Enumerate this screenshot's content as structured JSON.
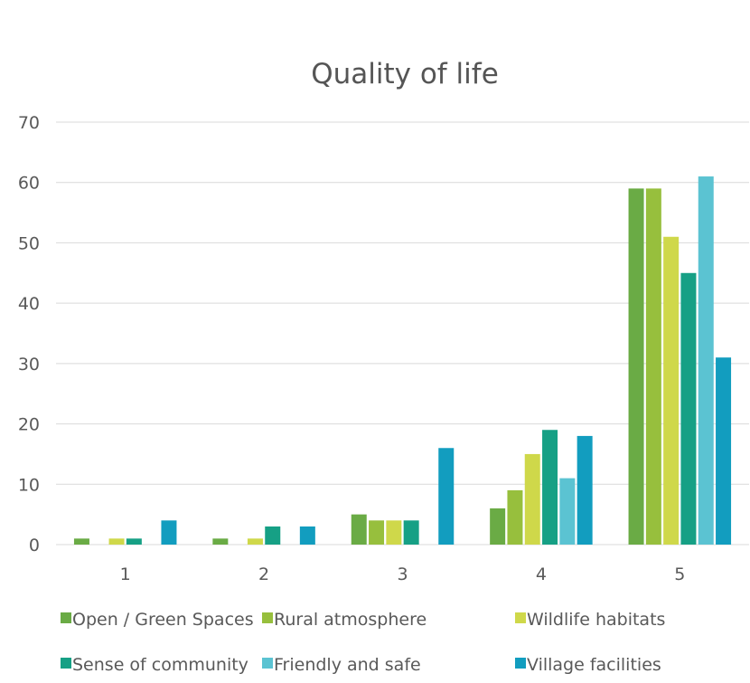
{
  "chart_data": {
    "type": "bar",
    "title": "Quality of life",
    "xlabel": "",
    "ylabel": "",
    "categories": [
      "1",
      "2",
      "3",
      "4",
      "5"
    ],
    "ylim": [
      0,
      70
    ],
    "yticks": [
      0,
      10,
      20,
      30,
      40,
      50,
      60,
      70
    ],
    "grid": true,
    "legend_position": "bottom",
    "series": [
      {
        "name": "Open / Green Spaces",
        "color": "#6aab45",
        "values": [
          1,
          1,
          5,
          6,
          59
        ]
      },
      {
        "name": "Rural atmosphere",
        "color": "#97bf3d",
        "values": [
          0,
          0,
          4,
          9,
          59
        ]
      },
      {
        "name": "Wildlife habitats",
        "color": "#cfd84a",
        "values": [
          1,
          1,
          4,
          15,
          51
        ]
      },
      {
        "name": "Sense of community",
        "color": "#16a085",
        "values": [
          1,
          3,
          4,
          19,
          45
        ]
      },
      {
        "name": "Friendly and safe",
        "color": "#5bc3d2",
        "values": [
          0,
          0,
          0,
          11,
          61
        ]
      },
      {
        "name": "Village facilities",
        "color": "#129dbf",
        "values": [
          4,
          3,
          16,
          18,
          31
        ]
      }
    ]
  }
}
